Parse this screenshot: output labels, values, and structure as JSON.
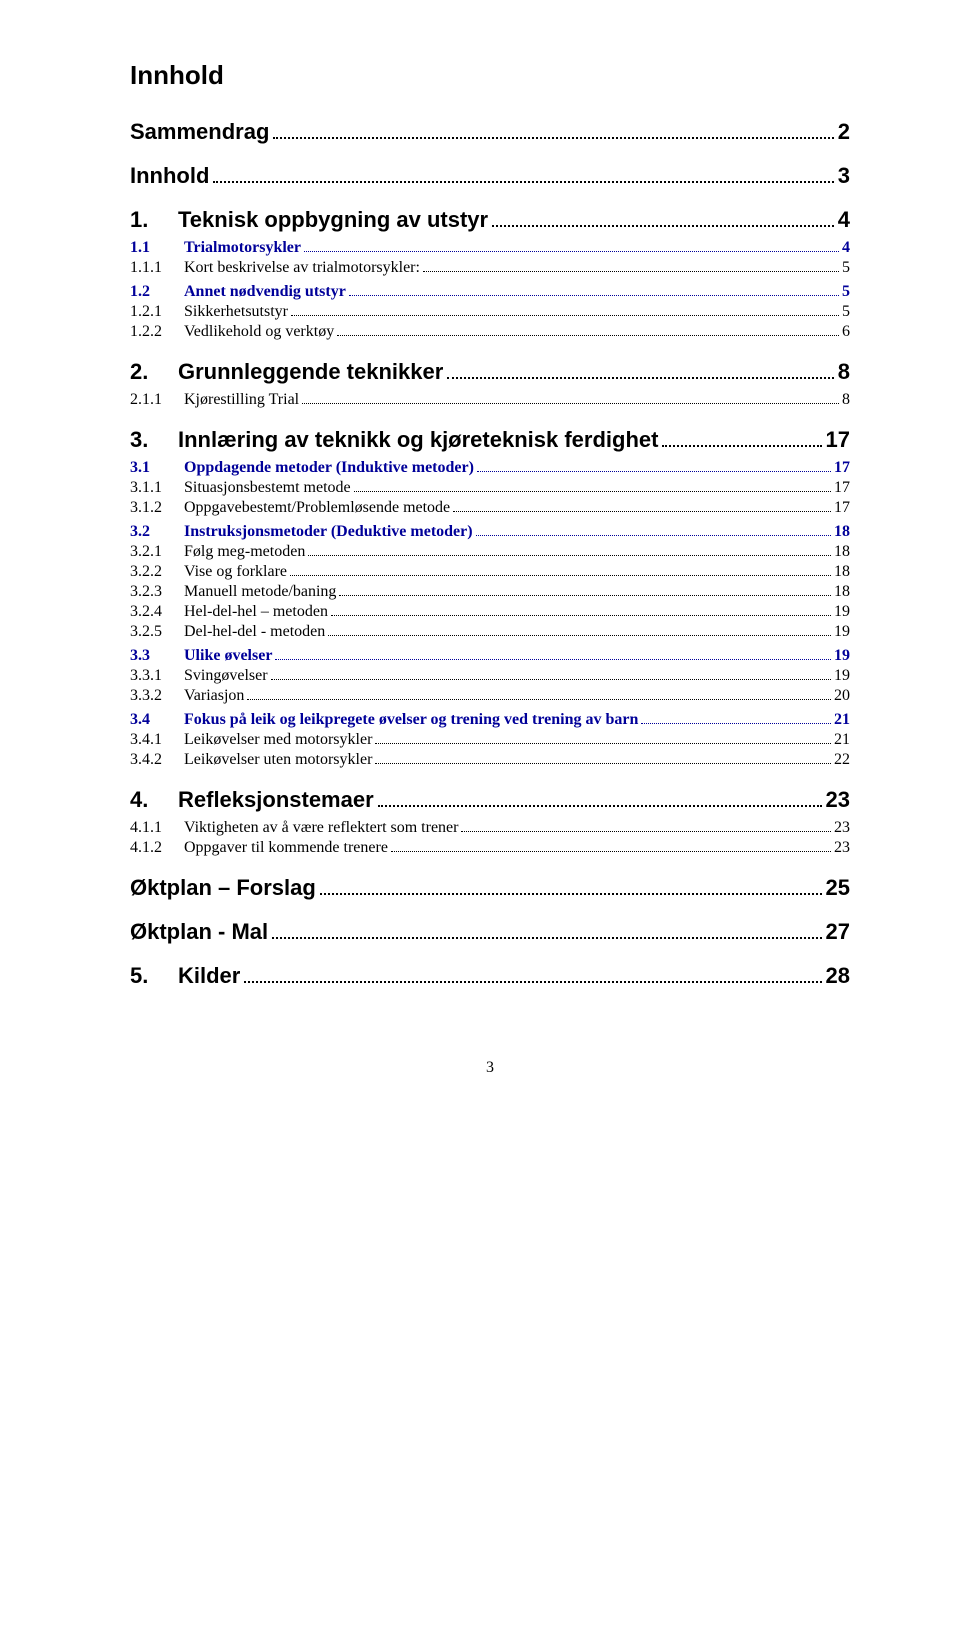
{
  "title": "Innhold",
  "page_number": "3",
  "colors": {
    "text": "#000000",
    "link": "#000099",
    "background": "#ffffff"
  },
  "fonts": {
    "heading_family": "Arial",
    "body_family": "Times New Roman",
    "title_size_pt": 20,
    "lvl1_size_pt": 16,
    "lvl2_size_pt": 12,
    "lvl3_size_pt": 12
  },
  "entries": [
    {
      "level": 1,
      "num": "",
      "label": "Sammendrag",
      "page": "2",
      "blue": false,
      "nonum": true
    },
    {
      "level": 1,
      "num": "",
      "label": "Innhold",
      "page": "3",
      "blue": false,
      "nonum": true
    },
    {
      "level": 1,
      "num": "1.",
      "label": "Teknisk oppbygning av utstyr",
      "page": "4",
      "blue": false
    },
    {
      "level": 2,
      "num": "1.1",
      "label": "Trialmotorsykler",
      "page": "4",
      "blue": true
    },
    {
      "level": 3,
      "num": "1.1.1",
      "label": "Kort beskrivelse av trialmotorsykler:",
      "page": "5",
      "blue": false
    },
    {
      "level": 2,
      "num": "1.2",
      "label": "Annet nødvendig utstyr",
      "page": "5",
      "blue": true
    },
    {
      "level": 3,
      "num": "1.2.1",
      "label": "Sikkerhetsutstyr",
      "page": "5",
      "blue": false
    },
    {
      "level": 3,
      "num": "1.2.2",
      "label": "Vedlikehold og verktøy",
      "page": "6",
      "blue": false
    },
    {
      "level": 1,
      "num": "2.",
      "label": "Grunnleggende teknikker",
      "page": "8",
      "blue": false
    },
    {
      "level": 3,
      "num": "2.1.1",
      "label": "Kjørestilling Trial",
      "page": "8",
      "blue": false
    },
    {
      "level": 1,
      "num": "3.",
      "label": "Innlæring av teknikk og kjøreteknisk ferdighet",
      "page": "17",
      "blue": false
    },
    {
      "level": 2,
      "num": "3.1",
      "label": "Oppdagende metoder (Induktive metoder)",
      "page": "17",
      "blue": true
    },
    {
      "level": 3,
      "num": "3.1.1",
      "label": "Situasjonsbestemt metode",
      "page": "17",
      "blue": false
    },
    {
      "level": 3,
      "num": "3.1.2",
      "label": "Oppgavebestemt/Problemløsende metode",
      "page": "17",
      "blue": false
    },
    {
      "level": 2,
      "num": "3.2",
      "label": "Instruksjonsmetoder (Deduktive metoder)",
      "page": "18",
      "blue": true
    },
    {
      "level": 3,
      "num": "3.2.1",
      "label": "Følg meg-metoden",
      "page": "18",
      "blue": false
    },
    {
      "level": 3,
      "num": "3.2.2",
      "label": "Vise og forklare",
      "page": "18",
      "blue": false
    },
    {
      "level": 3,
      "num": "3.2.3",
      "label": "Manuell metode/baning",
      "page": "18",
      "blue": false
    },
    {
      "level": 3,
      "num": "3.2.4",
      "label": "Hel-del-hel – metoden",
      "page": "19",
      "blue": false
    },
    {
      "level": 3,
      "num": "3.2.5",
      "label": "Del-hel-del - metoden",
      "page": "19",
      "blue": false
    },
    {
      "level": 2,
      "num": "3.3",
      "label": "Ulike øvelser",
      "page": "19",
      "blue": true
    },
    {
      "level": 3,
      "num": "3.3.1",
      "label": "Svingøvelser",
      "page": "19",
      "blue": false
    },
    {
      "level": 3,
      "num": "3.3.2",
      "label": "Variasjon",
      "page": "20",
      "blue": false
    },
    {
      "level": 2,
      "num": "3.4",
      "label": "Fokus på leik og leikpregete øvelser og trening ved trening av barn",
      "page": "21",
      "blue": true
    },
    {
      "level": 3,
      "num": "3.4.1",
      "label": "Leikøvelser med motorsykler",
      "page": "21",
      "blue": false
    },
    {
      "level": 3,
      "num": "3.4.2",
      "label": "Leikøvelser uten motorsykler",
      "page": "22",
      "blue": false
    },
    {
      "level": 1,
      "num": "4.",
      "label": "Refleksjonstemaer",
      "page": "23",
      "blue": false
    },
    {
      "level": 3,
      "num": "4.1.1",
      "label": "Viktigheten av å være reflektert som trener",
      "page": "23",
      "blue": false
    },
    {
      "level": 3,
      "num": "4.1.2",
      "label": "Oppgaver til kommende trenere",
      "page": "23",
      "blue": false
    },
    {
      "level": 1,
      "num": "",
      "label": "Øktplan – Forslag",
      "page": "25",
      "blue": false,
      "nonum": true
    },
    {
      "level": 1,
      "num": "",
      "label": "Øktplan - Mal",
      "page": "27",
      "blue": false,
      "nonum": true
    },
    {
      "level": 1,
      "num": "5.",
      "label": "Kilder",
      "page": "28",
      "blue": false
    }
  ]
}
